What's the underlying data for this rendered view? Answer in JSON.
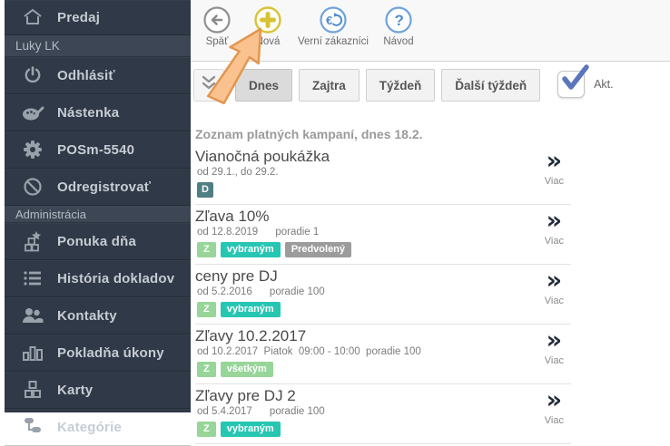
{
  "colors": {
    "sidebar_bg": "#303947",
    "sidebar_section_bg": "#3d4654",
    "icon_gray": "#99a1ab",
    "toolbar_yellow": "#d9c233",
    "toolbar_blue": "#6fa3d9",
    "toolbar_gray": "#909090",
    "check_blue": "#5b76bb",
    "badge_slate": "#4f7f82",
    "badge_green": "#97d599",
    "badge_teal": "#27c6b3",
    "badge_gray": "#9c9c9c",
    "arrow_fill": "#f9c28f",
    "arrow_stroke": "#e2964f"
  },
  "sidebar": {
    "items": [
      {
        "name": "predaj",
        "label": "Predaj",
        "icon": "home"
      },
      {
        "name": "luky-lk",
        "label": "Luky LK",
        "type": "section"
      },
      {
        "name": "odhlasit",
        "label": "Odhlásiť",
        "icon": "power"
      },
      {
        "name": "nastenka",
        "label": "Nástenka",
        "icon": "palette"
      },
      {
        "name": "posm-5540",
        "label": "POSm-5540",
        "icon": "gear"
      },
      {
        "name": "odregistrovat",
        "label": "Odregistrovať",
        "icon": "slash"
      },
      {
        "name": "administracia",
        "label": "Administrácia",
        "type": "section",
        "small": true
      },
      {
        "name": "ponuka-dna",
        "label": "Ponuka dňa",
        "icon": "offer"
      },
      {
        "name": "historia-dokladov",
        "label": "História dokladov",
        "icon": "list"
      },
      {
        "name": "kontakty",
        "label": "Kontakty",
        "icon": "people"
      },
      {
        "name": "pokladna-ukony",
        "label": "Pokladňa úkony",
        "icon": "chart"
      },
      {
        "name": "karty",
        "label": "Karty",
        "icon": "cards"
      },
      {
        "name": "kategorie",
        "label": "Kategórie",
        "icon": "categories"
      }
    ]
  },
  "toolbar": {
    "buttons": [
      {
        "name": "back",
        "label": "Späť",
        "icon": "back"
      },
      {
        "name": "new",
        "label": "Nová",
        "icon": "plus"
      },
      {
        "name": "loyal-customers",
        "label": "Verní zákazníci",
        "icon": "euro"
      },
      {
        "name": "guide",
        "label": "Návod",
        "icon": "question"
      }
    ]
  },
  "filters": {
    "buttons": [
      {
        "name": "today",
        "label": "Dnes"
      },
      {
        "name": "tomorrow",
        "label": "Zajtra"
      },
      {
        "name": "week",
        "label": "Týždeň"
      },
      {
        "name": "next-week",
        "label": "Ďalší týždeň"
      }
    ],
    "selected": "Dnes",
    "active_label": "Akt.",
    "active_checked": true
  },
  "list": {
    "heading": "Zoznam platných kampaní, dnes 18.2.",
    "more_label": "Viac",
    "campaigns": [
      {
        "title": "Vianočná poukážka",
        "details": "od 29.1., do 29.2.",
        "badges": [
          {
            "text": "D",
            "style": "slate"
          }
        ]
      },
      {
        "title": "Zľava 10%",
        "details": "od 12.8.2019      poradie 1",
        "badges": [
          {
            "text": "Z",
            "style": "green-light"
          },
          {
            "text": "vybraným",
            "style": "teal"
          },
          {
            "text": "Predvolený",
            "style": "gray"
          }
        ]
      },
      {
        "title": "ceny pre DJ",
        "details": "od 5.2.2016      poradie 100",
        "badges": [
          {
            "text": "Z",
            "style": "green-light"
          },
          {
            "text": "vybraným",
            "style": "teal"
          }
        ]
      },
      {
        "title": "Zľavy 10.2.2017",
        "details": "od 10.2.2017  Piatok  09:00 - 10:00  poradie 100",
        "badges": [
          {
            "text": "Z",
            "style": "green-light"
          },
          {
            "text": "všetkým",
            "style": "green-light"
          }
        ]
      },
      {
        "title": "Zľavy pre DJ 2",
        "details": "od 5.4.2017      poradie 100",
        "badges": [
          {
            "text": "Z",
            "style": "green-light"
          },
          {
            "text": "vybraným",
            "style": "teal"
          }
        ]
      }
    ]
  }
}
